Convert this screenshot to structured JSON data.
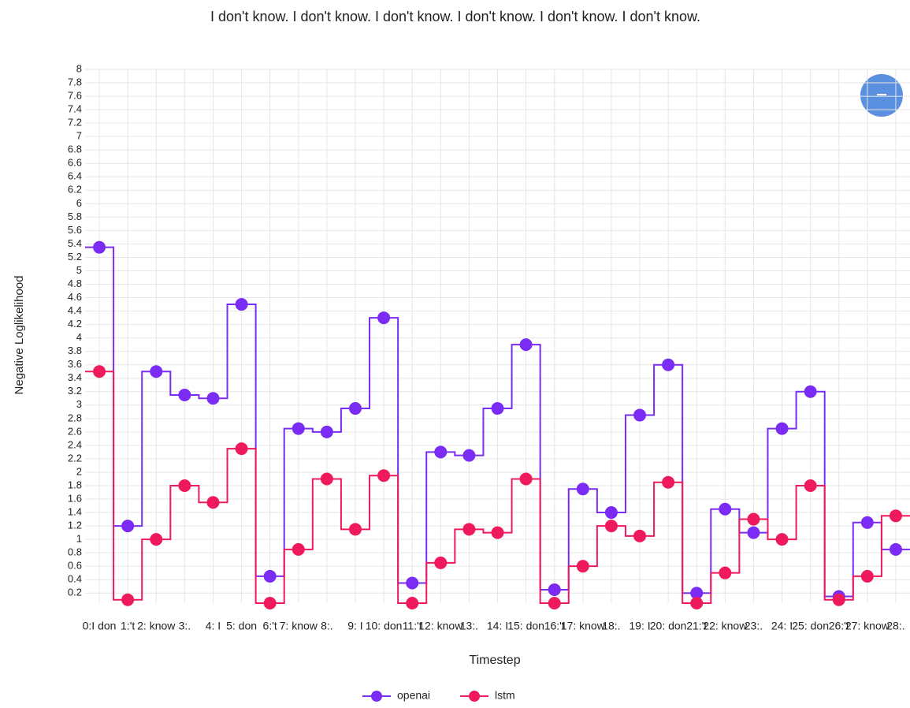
{
  "chart_data": {
    "type": "step",
    "title": "I don't know. I don't know. I don't know. I don't know. I don't know. I don't know.",
    "x_label": "Timestep",
    "y_label": "Negative Loglikelihood",
    "categories": [
      "0:I don",
      "1:'t",
      "2: know",
      "3:.",
      "4: I",
      "5: don",
      "6:'t",
      "7: know",
      "8:.",
      "9: I",
      "10: don",
      "11:'t",
      "12: know",
      "13:.",
      "14: I",
      "15: don",
      "16:'t",
      "17: know",
      "18:.",
      "19: I",
      "20: don",
      "21:'t",
      "22: know",
      "23:.",
      "24: I",
      "25: don",
      "26:'t",
      "27: know",
      "28:."
    ],
    "series": [
      {
        "name": "openai",
        "color": "#7a2cf5",
        "values": [
          5.35,
          1.2,
          3.5,
          3.15,
          3.1,
          4.5,
          0.45,
          2.65,
          2.6,
          2.95,
          4.3,
          0.35,
          2.3,
          2.25,
          2.95,
          3.9,
          0.25,
          1.75,
          1.4,
          2.85,
          3.6,
          0.2,
          1.45,
          1.1,
          2.65,
          3.2,
          0.15,
          1.25,
          0.85
        ]
      },
      {
        "name": "lstm",
        "color": "#ef1a5c",
        "values": [
          3.5,
          0.1,
          1.0,
          1.8,
          1.55,
          2.35,
          0.05,
          0.85,
          1.9,
          1.15,
          1.95,
          0.05,
          0.65,
          1.15,
          1.1,
          1.9,
          0.05,
          0.6,
          1.2,
          1.05,
          1.85,
          0.05,
          0.5,
          1.3,
          1.0,
          1.8,
          0.1,
          0.45,
          1.35
        ]
      }
    ],
    "ylim": [
      0.05,
      8
    ],
    "yticks": [
      0.2,
      0.4,
      0.6,
      0.8,
      1,
      1.2,
      1.4,
      1.6,
      1.8,
      2,
      2.2,
      2.4,
      2.6,
      2.8,
      3,
      3.2,
      3.4,
      3.6,
      3.8,
      4,
      4.2,
      4.4,
      4.6,
      4.8,
      5,
      5.2,
      5.4,
      5.6,
      5.8,
      6,
      6.2,
      6.4,
      6.6,
      6.8,
      7,
      7.2,
      7.4,
      7.6,
      7.8,
      8
    ],
    "grid": true,
    "legend": "bottom"
  }
}
